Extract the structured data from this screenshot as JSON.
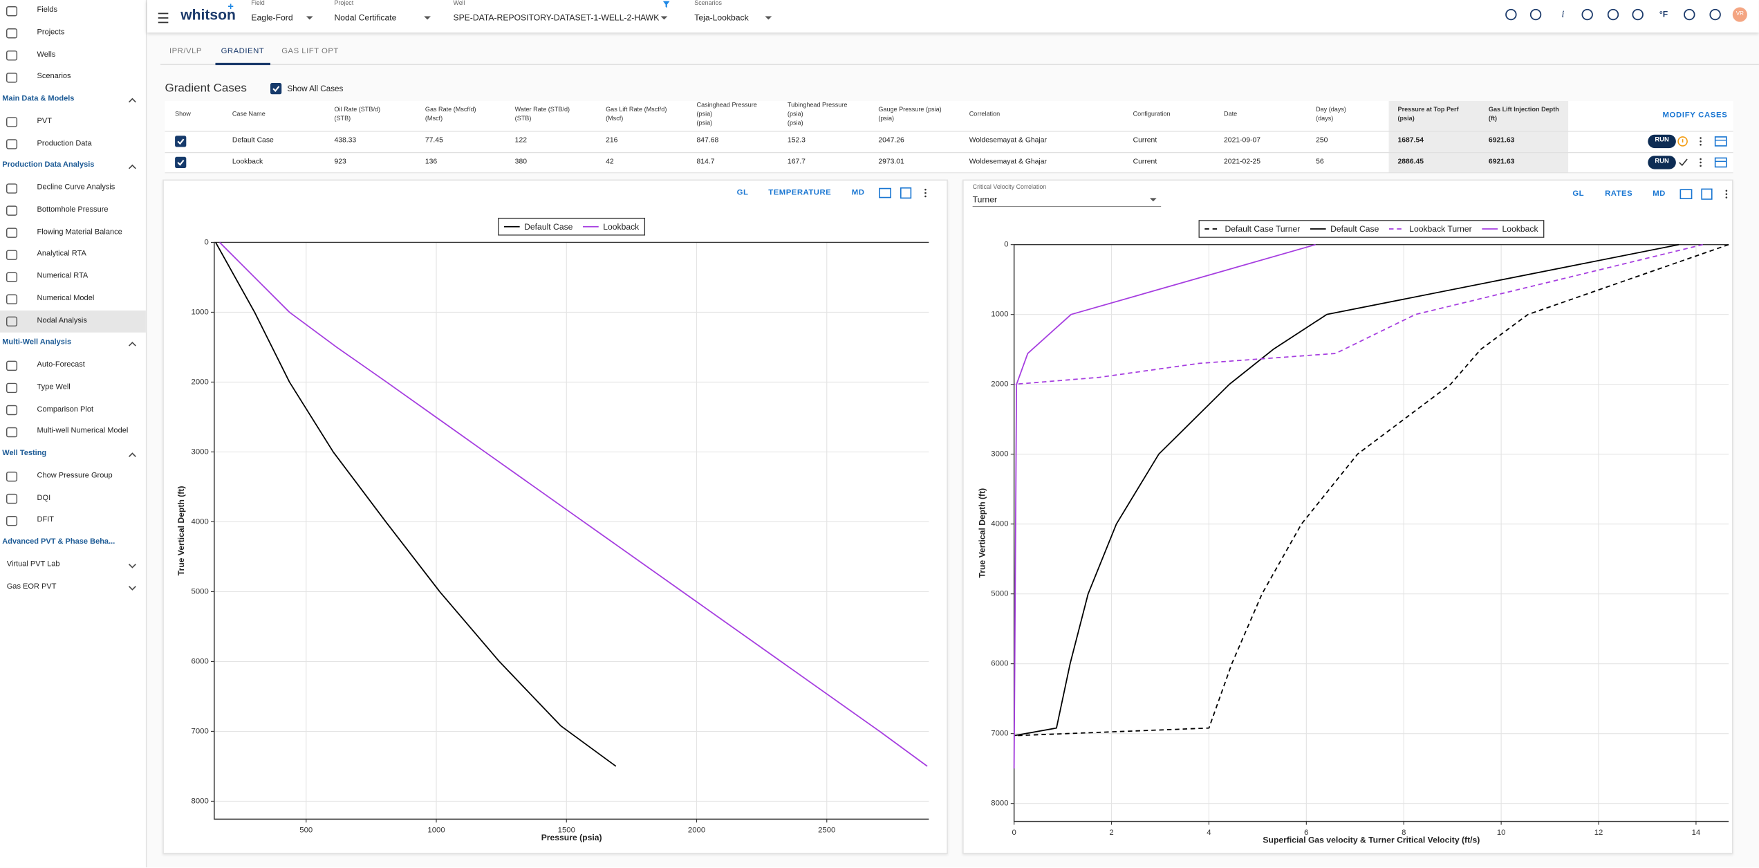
{
  "nav": {
    "top": [
      {
        "label": "Fields"
      },
      {
        "label": "Projects"
      },
      {
        "label": "Wells"
      },
      {
        "label": "Scenarios"
      }
    ],
    "sections": [
      {
        "title": "Main Data & Models",
        "collapsed": false,
        "items": [
          {
            "label": "PVT"
          },
          {
            "label": "Production Data"
          }
        ]
      },
      {
        "title": "Production Data Analysis",
        "collapsed": false,
        "items": [
          {
            "label": "Decline Curve Analysis"
          },
          {
            "label": "Bottomhole Pressure"
          },
          {
            "label": "Flowing Material Balance"
          },
          {
            "label": "Analytical RTA"
          },
          {
            "label": "Numerical RTA"
          },
          {
            "label": "Numerical Model"
          },
          {
            "label": "Nodal Analysis",
            "selected": true
          }
        ]
      },
      {
        "title": "Multi-Well Analysis",
        "collapsed": false,
        "items": [
          {
            "label": "Auto-Forecast"
          },
          {
            "label": "Type Well"
          },
          {
            "label": "Comparison Plot"
          },
          {
            "label": "Multi-well Numerical Model"
          }
        ]
      },
      {
        "title": "Well Testing",
        "collapsed": false,
        "items": [
          {
            "label": "Chow Pressure Group"
          },
          {
            "label": "DQI"
          },
          {
            "label": "DFIT"
          }
        ]
      },
      {
        "title": "Advanced PVT & Phase Beha...",
        "items": [
          {
            "label": "Virtual PVT Lab",
            "collapsed": true
          },
          {
            "label": "Gas EOR PVT",
            "collapsed": true
          }
        ]
      }
    ]
  },
  "header": {
    "brand": "whitson",
    "brand_mark": "+",
    "selectors": [
      {
        "label": "Field",
        "value": "Eagle-Ford"
      },
      {
        "label": "Project",
        "value": "Nodal Certificate"
      },
      {
        "label": "Well",
        "value": "SPE-DATA-REPOSITORY-DATASET-1-WELL-2-HAWK",
        "filter": true
      },
      {
        "label": "Scenarios",
        "value": "Teja-Lookback"
      }
    ],
    "info": "i",
    "unit": "°F",
    "user": "VR"
  },
  "tabs": [
    {
      "label": "IPR/VLP"
    },
    {
      "label": "GRADIENT",
      "active": true
    },
    {
      "label": "GAS LIFT OPT"
    }
  ],
  "gradient_cases": {
    "title": "Gradient Cases",
    "show_all": "Show All Cases",
    "show_all_checked": true,
    "modify": "MODIFY CASES",
    "run": "RUN",
    "columns": [
      [
        "Show"
      ],
      [
        "Case Name"
      ],
      [
        "Oil Rate (STB/d)",
        "(STB)"
      ],
      [
        "Gas Rate (Mscf/d)",
        "(Mscf)"
      ],
      [
        "Water Rate (STB/d)",
        "(STB)"
      ],
      [
        "Gas Lift Rate (Mscf/d)",
        "(Mscf)"
      ],
      [
        "Casinghead Pressure",
        "(psia)",
        "(psia)"
      ],
      [
        "Tubinghead Pressure",
        "(psia)",
        "(psia)"
      ],
      [
        "Gauge Pressure (psia)",
        "(psia)"
      ],
      [
        "Correlation"
      ],
      [
        "Configuration"
      ],
      [
        "Date"
      ],
      [
        "Day (days)",
        "(days)"
      ],
      [
        "Pressure at Top Perf",
        "(psia)"
      ],
      [
        "Gas Lift Injection Depth",
        "(ft)"
      ]
    ],
    "rows": [
      {
        "shown": true,
        "status": "warning",
        "cells": [
          "Default Case",
          "438.33",
          "77.45",
          "122",
          "216",
          "847.68",
          "152.3",
          "2047.26",
          "Woldesemayat & Ghajar",
          "Current",
          "2021-09-07",
          "250",
          "1687.54",
          "6921.63"
        ]
      },
      {
        "shown": true,
        "status": "ok",
        "cells": [
          "Lookback",
          "923",
          "136",
          "380",
          "42",
          "814.7",
          "167.7",
          "2973.01",
          "Woldesemayat & Ghajar",
          "Current",
          "2021-02-25",
          "56",
          "2886.45",
          "6921.63"
        ]
      }
    ]
  },
  "panels": [
    {
      "toolbar": [
        "GL",
        "TEMPERATURE",
        "MD"
      ]
    },
    {
      "toolbar": [
        "GL",
        "RATES",
        "MD"
      ],
      "selector": {
        "label": "Critical Velocity Correlation",
        "value": "Turner"
      }
    }
  ],
  "chart_data": [
    {
      "type": "line",
      "xlabel": "Pressure (psia)",
      "ylabel": "True Vertical Depth (ft)",
      "xlim": [
        147,
        2892
      ],
      "ylim": [
        0,
        8257
      ],
      "y_inverted": true,
      "xticks": [
        500,
        1000,
        1500,
        2000,
        2500
      ],
      "yticks": [
        0,
        1000,
        2000,
        3000,
        4000,
        5000,
        6000,
        7000,
        8000
      ],
      "grid": true,
      "legend": "top",
      "series": [
        {
          "name": "Default Case",
          "color": "#000000",
          "x": [
            152.3,
            302,
            436,
            604,
            806,
            1013,
            1242,
            1478,
            1690
          ],
          "values": [
            0,
            1000,
            2000,
            3000,
            4000,
            5000,
            6000,
            6921,
            7500
          ]
        },
        {
          "name": "Lookback",
          "color": "#a63ee0",
          "x": [
            167.7,
            436,
            617,
            809,
            1187,
            1566,
            1945,
            2324,
            2703,
            2886
          ],
          "values": [
            0,
            1000,
            1500,
            2000,
            3000,
            4000,
            5000,
            6000,
            7000,
            7500
          ]
        }
      ]
    },
    {
      "type": "line",
      "xlabel": "Superficial Gas velocity & Turner Critical Velocity (ft/s)",
      "ylabel": "True Vertical Depth (ft)",
      "xlim": [
        0,
        14.67
      ],
      "ylim": [
        0,
        8257
      ],
      "y_inverted": true,
      "xticks": [
        0,
        2,
        4,
        6,
        8,
        10,
        12,
        14
      ],
      "yticks": [
        0,
        1000,
        2000,
        3000,
        4000,
        5000,
        6000,
        7000,
        8000
      ],
      "grid": true,
      "legend": "top",
      "series": [
        {
          "name": "Default Case Turner",
          "color": "#000000",
          "dashed": true,
          "x": [
            14.67,
            10.55,
            9.58,
            8.96,
            7.05,
            5.9,
            5.09,
            4.47,
            4.0,
            0
          ],
          "values": [
            0,
            1000,
            1500,
            2000,
            3000,
            4000,
            5000,
            6000,
            6921,
            7030
          ]
        },
        {
          "name": "Default Case",
          "color": "#000000",
          "x": [
            13.65,
            6.42,
            5.32,
            4.42,
            2.97,
            2.1,
            1.52,
            1.15,
            0.87,
            0
          ],
          "values": [
            0,
            1000,
            1500,
            2000,
            3000,
            4000,
            5000,
            6000,
            6921,
            7030
          ]
        },
        {
          "name": "Lookback Turner",
          "color": "#a63ee0",
          "dashed": true,
          "x": [
            14.14,
            11.2,
            8.24,
            6.6,
            3.8,
            1.75,
            0
          ],
          "values": [
            0,
            500,
            1000,
            1558,
            1700,
            1900,
            2000
          ]
        },
        {
          "name": "Lookback",
          "color": "#a63ee0",
          "x": [
            6.19,
            1.17,
            0.28,
            0.05,
            0
          ],
          "values": [
            0,
            1000,
            1558,
            2000,
            7500
          ]
        }
      ]
    }
  ]
}
